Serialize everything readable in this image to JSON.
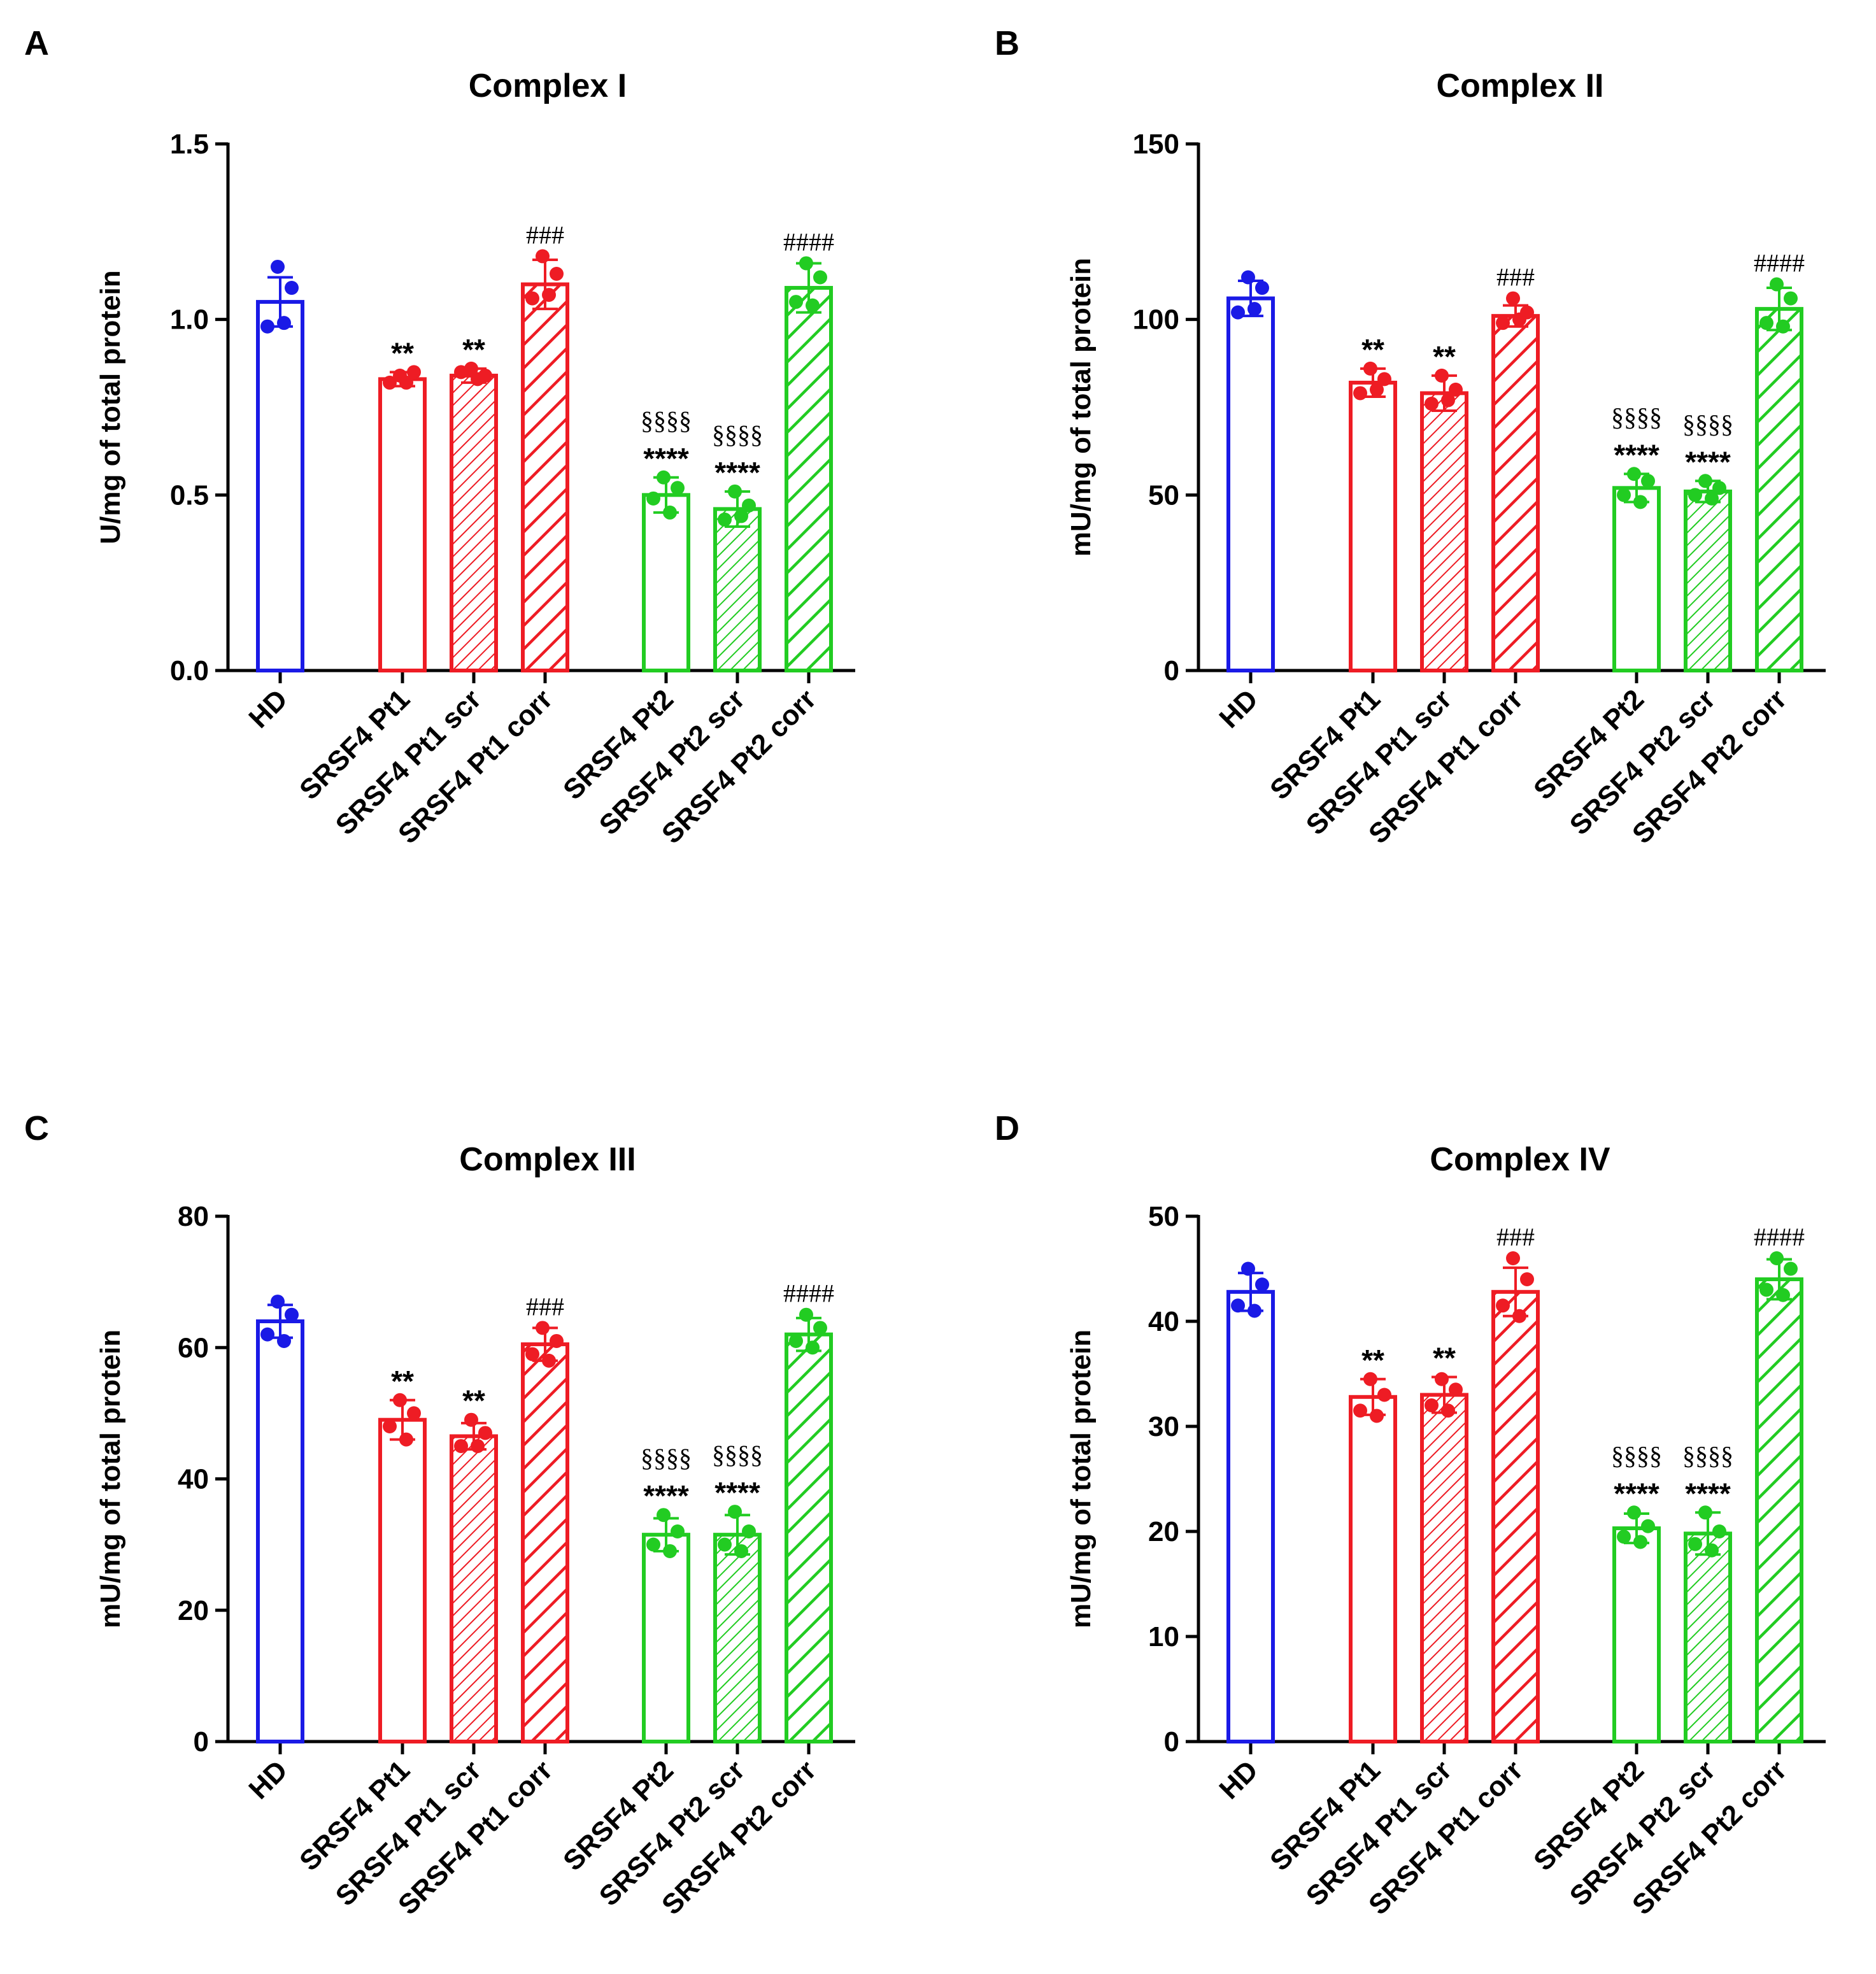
{
  "categories": [
    "HD",
    "SRSF4 Pt1",
    "SRSF4 Pt1 scr",
    "SRSF4 Pt1 corr",
    "SRSF4 Pt2",
    "SRSF4 Pt2 scr",
    "SRSF4 Pt2 corr"
  ],
  "colors": {
    "HD": "#1a1ae6",
    "Pt1": "#ee1c24",
    "Pt2": "#22cc22",
    "axis": "#000000"
  },
  "chart_data": [
    {
      "panel": "A",
      "type": "bar",
      "title": "Complex I",
      "ylabel": "U/mg of total protein",
      "ylim": [
        0,
        1.5
      ],
      "yticks": [
        "0.0",
        "0.5",
        "1.0",
        "1.5"
      ],
      "categories": [
        "HD",
        "SRSF4 Pt1",
        "SRSF4 Pt1 scr",
        "SRSF4 Pt1 corr",
        "SRSF4 Pt2",
        "SRSF4 Pt2 scr",
        "SRSF4 Pt2 corr"
      ],
      "values": [
        1.05,
        0.83,
        0.84,
        1.1,
        0.5,
        0.46,
        1.09
      ],
      "sd": [
        0.07,
        0.02,
        0.02,
        0.07,
        0.05,
        0.05,
        0.07
      ],
      "points": [
        [
          1.15,
          1.09,
          0.98,
          0.99
        ],
        [
          0.84,
          0.85,
          0.82,
          0.82
        ],
        [
          0.86,
          0.84,
          0.85,
          0.83
        ],
        [
          1.18,
          1.13,
          1.06,
          1.07
        ],
        [
          0.55,
          0.52,
          0.49,
          0.45
        ],
        [
          0.51,
          0.47,
          0.43,
          0.44
        ],
        [
          1.16,
          1.12,
          1.05,
          1.04
        ]
      ],
      "annot_stars": [
        "",
        "**",
        "**",
        "",
        "****",
        "****",
        ""
      ],
      "annot_sect": [
        "",
        "",
        "",
        "",
        "§§§§",
        "§§§§",
        ""
      ],
      "annot_hash": [
        "",
        "",
        "",
        "###",
        "",
        "",
        "####"
      ]
    },
    {
      "panel": "B",
      "type": "bar",
      "title": "Complex II",
      "ylabel": "mU/mg of total protein",
      "ylim": [
        0,
        150
      ],
      "yticks": [
        "0",
        "50",
        "100",
        "150"
      ],
      "categories": [
        "HD",
        "SRSF4 Pt1",
        "SRSF4 Pt1 scr",
        "SRSF4 Pt1 corr",
        "SRSF4 Pt2",
        "SRSF4 Pt2 scr",
        "SRSF4 Pt2 corr"
      ],
      "values": [
        106,
        82,
        79,
        101,
        52,
        51,
        103
      ],
      "sd": [
        5,
        4,
        5,
        3,
        4,
        3,
        6
      ],
      "points": [
        [
          112,
          109,
          102,
          103
        ],
        [
          86,
          83,
          79,
          80
        ],
        [
          84,
          80,
          76,
          77
        ],
        [
          106,
          102,
          99,
          100
        ],
        [
          56,
          54,
          50,
          48
        ],
        [
          54,
          52,
          50,
          49
        ],
        [
          110,
          106,
          99,
          98
        ]
      ],
      "annot_stars": [
        "",
        "**",
        "**",
        "",
        "****",
        "****",
        ""
      ],
      "annot_sect": [
        "",
        "",
        "",
        "",
        "§§§§",
        "§§§§",
        ""
      ],
      "annot_hash": [
        "",
        "",
        "",
        "###",
        "",
        "",
        "####"
      ]
    },
    {
      "panel": "C",
      "type": "bar",
      "title": "Complex III",
      "ylabel": "mU/mg of total protein",
      "ylim": [
        0,
        80
      ],
      "yticks": [
        "0",
        "20",
        "40",
        "60",
        "80"
      ],
      "categories": [
        "HD",
        "SRSF4 Pt1",
        "SRSF4 Pt1 scr",
        "SRSF4 Pt1 corr",
        "SRSF4 Pt2",
        "SRSF4 Pt2 scr",
        "SRSF4 Pt2 corr"
      ],
      "values": [
        64,
        49,
        46.5,
        60.5,
        31.5,
        31.5,
        62
      ],
      "sd": [
        2.5,
        3,
        2,
        2.5,
        2.5,
        3,
        2.5
      ],
      "points": [
        [
          67,
          65,
          62,
          61
        ],
        [
          52,
          50,
          48,
          46
        ],
        [
          49,
          47,
          45,
          45
        ],
        [
          63,
          61,
          59,
          58
        ],
        [
          34.5,
          32,
          30,
          29
        ],
        [
          35,
          32,
          30,
          29
        ],
        [
          65,
          63,
          61,
          60
        ]
      ],
      "annot_stars": [
        "",
        "**",
        "**",
        "",
        "****",
        "****",
        ""
      ],
      "annot_sect": [
        "",
        "",
        "",
        "",
        "§§§§",
        "§§§§",
        ""
      ],
      "annot_hash": [
        "",
        "",
        "",
        "###",
        "",
        "",
        "####"
      ]
    },
    {
      "panel": "D",
      "type": "bar",
      "title": "Complex IV",
      "ylabel": "mU/mg of total protein",
      "ylim": [
        0,
        50
      ],
      "yticks": [
        "0",
        "10",
        "20",
        "30",
        "40",
        "50"
      ],
      "categories": [
        "HD",
        "SRSF4 Pt1",
        "SRSF4 Pt1 scr",
        "SRSF4 Pt1 corr",
        "SRSF4 Pt2",
        "SRSF4 Pt2 scr",
        "SRSF4 Pt2 corr"
      ],
      "values": [
        42.8,
        32.8,
        33,
        42.8,
        20.3,
        19.8,
        44
      ],
      "sd": [
        1.8,
        1.7,
        1.7,
        2.3,
        1.4,
        2,
        1.9
      ],
      "points": [
        [
          45,
          43.5,
          41.5,
          41
        ],
        [
          34.5,
          33,
          31.5,
          31
        ],
        [
          34.5,
          33.5,
          32,
          31.5
        ],
        [
          46,
          44,
          41.5,
          40.5
        ],
        [
          21.8,
          20.5,
          19.5,
          19
        ],
        [
          21.8,
          20,
          18.8,
          18.2
        ],
        [
          46,
          45,
          43,
          42.5
        ]
      ],
      "annot_stars": [
        "",
        "**",
        "**",
        "",
        "****",
        "****",
        ""
      ],
      "annot_sect": [
        "",
        "",
        "",
        "",
        "§§§§",
        "§§§§",
        ""
      ],
      "annot_hash": [
        "",
        "",
        "",
        "###",
        "",
        "",
        "####"
      ]
    }
  ]
}
